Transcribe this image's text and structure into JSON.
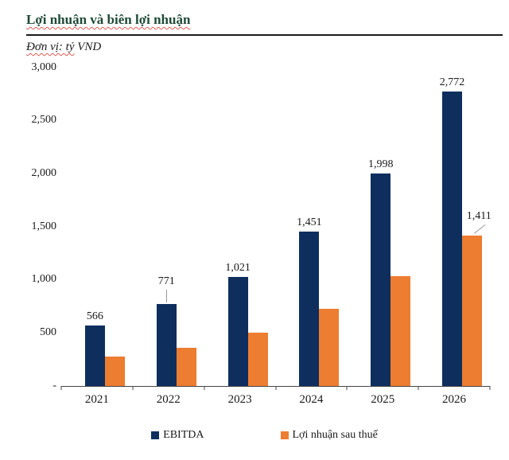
{
  "header": {
    "title": "Lợi nhuận và biên lợi nhuận",
    "unit_wavy": "Đơn vị: tỷ",
    "unit_rest": " VND"
  },
  "chart_data": {
    "type": "bar",
    "title": "Lợi nhuận và biên lợi nhuận",
    "unit": "tỷ VND",
    "categories": [
      "2021",
      "2022",
      "2023",
      "2024",
      "2025",
      "2026"
    ],
    "series": [
      {
        "name": "EBITDA",
        "color": "#0e2f5e",
        "values": [
          566,
          771,
          1021,
          1451,
          1998,
          2772
        ],
        "labels": [
          "566",
          "771",
          "1,021",
          "1,451",
          "1,998",
          "2,772"
        ],
        "leaders": [
          "",
          "v",
          "",
          "",
          "",
          ""
        ]
      },
      {
        "name": "Lợi nhuận sau thuế",
        "color": "#ed7d31",
        "values": [
          278,
          355,
          500,
          722,
          1030,
          1411
        ],
        "labels": [
          "",
          "",
          "",
          "",
          "",
          "1,411"
        ],
        "leaders": [
          "",
          "",
          "",
          "",
          "",
          "d"
        ]
      }
    ],
    "ylim": [
      0,
      3000
    ],
    "yticks": [
      {
        "value": 3000,
        "label": "3,000"
      },
      {
        "value": 2500,
        "label": "2,500"
      },
      {
        "value": 2000,
        "label": "2,000"
      },
      {
        "value": 1500,
        "label": "1,500"
      },
      {
        "value": 1000,
        "label": "1,000"
      },
      {
        "value": 500,
        "label": "500"
      },
      {
        "value": 0,
        "label": "-"
      }
    ],
    "grid": false,
    "legend_position": "bottom"
  }
}
